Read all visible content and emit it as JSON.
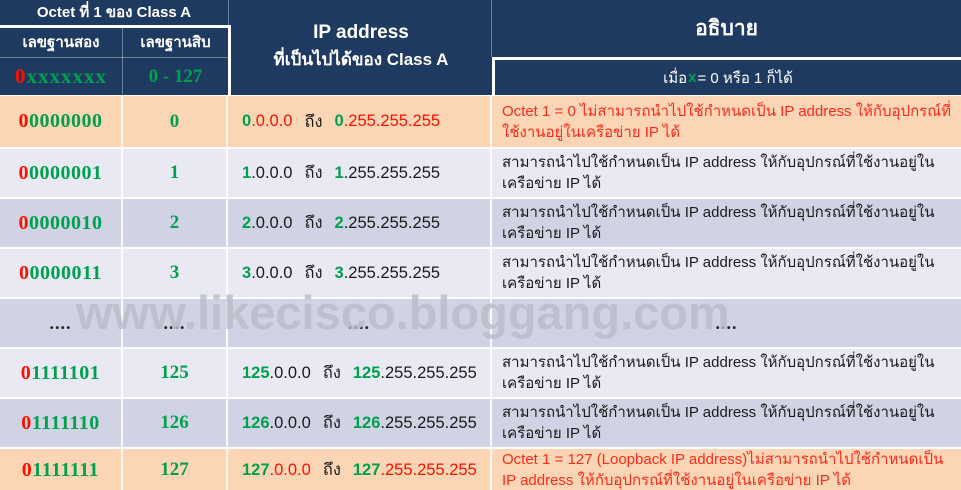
{
  "colors": {
    "navy": "#1F3A60",
    "peach": "#FBD5B4",
    "rowLight": "#E9E9F4",
    "rowMid": "#D0D3E3",
    "green": "#00A14E",
    "red": "#FF0F00",
    "redText": "#FB2B1D",
    "dark": "#1A1A1A",
    "wm": "#B9BCC8"
  },
  "header": {
    "octet_title": "Octet ที่ 1 ของ Class A",
    "binary_col": "เลขฐานสอง",
    "decimal_col": "เลขฐานสิบ",
    "pattern_first": "0",
    "pattern_rest": "xxxxxxx",
    "decimal_range": "0 - 127",
    "ip_title_line1": "IP address",
    "ip_title_line2": "ที่เป็นไปได้ของ Class A",
    "explain_title": "อธิบาย",
    "note_pre": "เมื่อ ",
    "note_x": "x",
    "note_post": " = 0 หรือ 1 ก็ได้"
  },
  "rows": [
    {
      "binary_first": "0",
      "binary_rest": "0000000",
      "decimal": "0",
      "ip_start_octet": "0",
      "ip_start_rest": ".0.0.0",
      "ip_to": "ถึง",
      "ip_end_octet": "0",
      "ip_end_rest": ".255.255.255",
      "description": "Octet 1 = 0 ไม่สามารถนำไปใช้กำหนดเป็น IP address ให้กับอุปกรณ์ที่ใช้งานอยู่ในเครือข่าย IP ได้"
    },
    {
      "binary_first": "0",
      "binary_rest": "0000001",
      "decimal": "1",
      "ip_start_octet": "1",
      "ip_start_rest": ".0.0.0",
      "ip_to": "ถึง",
      "ip_end_octet": "1",
      "ip_end_rest": ".255.255.255",
      "description": "สามารถนำไปใช้กำหนดเป็น IP address ให้กับอุปกรณ์ที่ใช้งานอยู่ในเครือข่าย IP ได้"
    },
    {
      "binary_first": "0",
      "binary_rest": "0000010",
      "decimal": "2",
      "ip_start_octet": "2",
      "ip_start_rest": ".0.0.0",
      "ip_to": "ถึง",
      "ip_end_octet": "2",
      "ip_end_rest": ".255.255.255",
      "description": "สามารถนำไปใช้กำหนดเป็น IP address ให้กับอุปกรณ์ที่ใช้งานอยู่ในเครือข่าย IP ได้"
    },
    {
      "binary_first": "0",
      "binary_rest": "0000011",
      "decimal": "3",
      "ip_start_octet": "3",
      "ip_start_rest": ".0.0.0",
      "ip_to": "ถึง",
      "ip_end_octet": "3",
      "ip_end_rest": ".255.255.255",
      "description": "สามารถนำไปใช้กำหนดเป็น IP address ให้กับอุปกรณ์ที่ใช้งานอยู่ในเครือข่าย IP ได้"
    },
    {
      "cells": [
        "....",
        "....",
        "....",
        "...."
      ]
    },
    {
      "binary_first": "0",
      "binary_rest": "1111101",
      "decimal": "125",
      "ip_start_octet": "125",
      "ip_start_rest": ".0.0.0",
      "ip_to": "ถึง",
      "ip_end_octet": "125",
      "ip_end_rest": ".255.255.255",
      "description": "สามารถนำไปใช้กำหนดเป็น IP address ให้กับอุปกรณ์ที่ใช้งานอยู่ในเครือข่าย IP ได้"
    },
    {
      "binary_first": "0",
      "binary_rest": "1111110",
      "decimal": "126",
      "ip_start_octet": "126",
      "ip_start_rest": ".0.0.0",
      "ip_to": "ถึง",
      "ip_end_octet": "126",
      "ip_end_rest": ".255.255.255",
      "description": "สามารถนำไปใช้กำหนดเป็น IP address ให้กับอุปกรณ์ที่ใช้งานอยู่ในเครือข่าย IP ได้"
    },
    {
      "binary_first": "0",
      "binary_rest": "1111111",
      "decimal": "127",
      "ip_start_octet": "127",
      "ip_start_rest": ".0.0.0",
      "ip_to": "ถึง",
      "ip_end_octet": "127",
      "ip_end_rest": ".255.255.255",
      "description": "Octet 1 = 127  (Loopback IP address)ไม่สามารถนำไปใช้กำหนดเป็น IP address ให้กับอุปกรณ์ที่ใช้งานอยู่ในเครือข่าย IP ได้"
    }
  ],
  "watermark": {
    "text": "www.likecisco.bloggang.com"
  }
}
